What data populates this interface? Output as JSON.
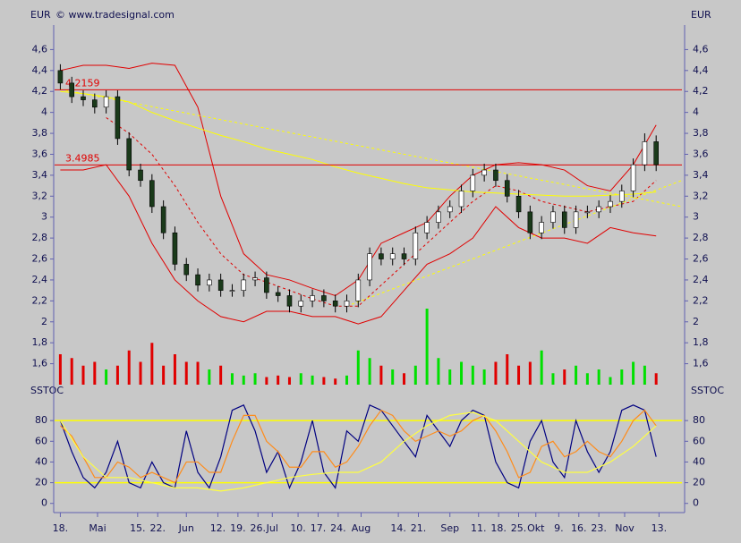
{
  "chart_data": [
    {
      "type": "candlestick",
      "y_label": "EUR",
      "copyright": "© www.tradesignal.com",
      "x": [
        0,
        4,
        8,
        12,
        16,
        20,
        24,
        28,
        32,
        36,
        40,
        44,
        48,
        52,
        56,
        60,
        64,
        68,
        72,
        76,
        80,
        84,
        88,
        92,
        96,
        100,
        104,
        108,
        112,
        116,
        120,
        124,
        128,
        132,
        136,
        140,
        144,
        148,
        152,
        156,
        160,
        164,
        168,
        172,
        176,
        180,
        184,
        188,
        192,
        196,
        200,
        204,
        208
      ],
      "open": [
        4.4,
        4.28,
        4.15,
        4.12,
        4.05,
        4.15,
        3.75,
        3.45,
        3.35,
        3.1,
        2.85,
        2.55,
        2.45,
        2.35,
        2.4,
        2.3,
        2.3,
        2.4,
        2.42,
        2.28,
        2.25,
        2.15,
        2.2,
        2.25,
        2.2,
        2.15,
        2.2,
        2.4,
        2.65,
        2.6,
        2.65,
        2.6,
        2.85,
        2.95,
        3.05,
        3.1,
        3.25,
        3.4,
        3.45,
        3.35,
        3.2,
        3.05,
        2.85,
        2.95,
        3.05,
        2.9,
        3.05,
        3.05,
        3.1,
        3.15,
        3.25,
        3.5,
        3.72
      ],
      "high": [
        4.46,
        4.34,
        4.21,
        4.18,
        4.21,
        4.21,
        3.81,
        3.51,
        3.41,
        3.16,
        2.91,
        2.61,
        2.51,
        2.46,
        2.46,
        2.36,
        2.46,
        2.48,
        2.48,
        2.34,
        2.31,
        2.26,
        2.31,
        2.31,
        2.26,
        2.26,
        2.46,
        2.71,
        2.71,
        2.71,
        2.71,
        2.91,
        3.01,
        3.11,
        3.16,
        3.31,
        3.46,
        3.51,
        3.51,
        3.41,
        3.26,
        3.11,
        3.01,
        3.11,
        3.11,
        3.11,
        3.11,
        3.16,
        3.21,
        3.31,
        3.56,
        3.8,
        3.78
      ],
      "low": [
        4.22,
        4.09,
        4.06,
        3.99,
        3.99,
        3.69,
        3.39,
        3.29,
        3.04,
        2.79,
        2.49,
        2.39,
        2.29,
        2.29,
        2.24,
        2.24,
        2.24,
        2.34,
        2.22,
        2.19,
        2.09,
        2.09,
        2.14,
        2.14,
        2.09,
        2.09,
        2.14,
        2.34,
        2.54,
        2.54,
        2.54,
        2.54,
        2.79,
        2.89,
        2.99,
        3.04,
        3.19,
        3.34,
        3.29,
        3.14,
        2.99,
        2.79,
        2.79,
        2.89,
        2.84,
        2.84,
        2.99,
        2.99,
        3.04,
        3.09,
        3.19,
        3.44,
        3.44
      ],
      "close": [
        4.28,
        4.15,
        4.12,
        4.05,
        4.15,
        3.75,
        3.45,
        3.35,
        3.1,
        2.85,
        2.55,
        2.45,
        2.35,
        2.4,
        2.3,
        2.3,
        2.4,
        2.42,
        2.28,
        2.25,
        2.15,
        2.2,
        2.25,
        2.2,
        2.15,
        2.2,
        2.4,
        2.65,
        2.6,
        2.65,
        2.6,
        2.85,
        2.95,
        3.05,
        3.1,
        3.25,
        3.4,
        3.45,
        3.35,
        3.2,
        3.05,
        2.85,
        2.95,
        3.05,
        2.9,
        3.05,
        3.05,
        3.1,
        3.15,
        3.25,
        3.5,
        3.72,
        3.5
      ],
      "color_up": "#ffffff",
      "color_down": "#1a3a1a",
      "overlays": [
        {
          "color": "#e00000",
          "dash": false,
          "x": [
            0,
            8,
            16,
            24,
            32,
            40,
            48,
            56,
            64,
            72,
            80,
            88,
            96,
            104,
            112,
            120,
            128,
            136,
            144,
            152,
            160,
            168,
            176,
            184,
            192,
            200,
            208
          ],
          "values": [
            4.4,
            4.45,
            4.45,
            4.42,
            4.47,
            4.45,
            4.05,
            3.2,
            2.65,
            2.45,
            2.4,
            2.32,
            2.25,
            2.4,
            2.75,
            2.85,
            2.95,
            3.2,
            3.4,
            3.5,
            3.52,
            3.5,
            3.45,
            3.3,
            3.25,
            3.5,
            3.88
          ]
        },
        {
          "color": "#e00000",
          "dash": false,
          "x": [
            0,
            8,
            16,
            24,
            32,
            40,
            48,
            56,
            64,
            72,
            80,
            88,
            96,
            104,
            112,
            120,
            128,
            136,
            144,
            152,
            160,
            168,
            176,
            184,
            192,
            200,
            208
          ],
          "values": [
            3.45,
            3.45,
            3.5,
            3.2,
            2.75,
            2.4,
            2.2,
            2.05,
            2.0,
            2.1,
            2.1,
            2.05,
            2.05,
            1.98,
            2.05,
            2.3,
            2.55,
            2.65,
            2.8,
            3.1,
            2.9,
            2.8,
            2.8,
            2.75,
            2.9,
            2.85,
            2.82
          ]
        },
        {
          "color": "#e00000",
          "dash": true,
          "x": [
            0,
            8,
            16,
            24,
            32,
            40,
            48,
            56,
            64,
            72,
            80,
            88,
            96,
            104,
            112,
            120,
            128,
            136,
            144,
            152,
            160,
            168,
            176,
            184,
            192,
            200,
            208
          ],
          "values": [
            null,
            null,
            3.95,
            3.8,
            3.6,
            3.3,
            2.95,
            2.65,
            2.45,
            2.38,
            2.3,
            2.22,
            2.15,
            2.15,
            2.35,
            2.55,
            2.75,
            2.95,
            3.15,
            3.3,
            3.25,
            3.15,
            3.1,
            3.05,
            3.1,
            3.15,
            3.35
          ]
        },
        {
          "color": "#ffff00",
          "dash": false,
          "x": [
            0,
            8,
            16,
            24,
            32,
            40,
            48,
            56,
            64,
            72,
            80,
            88,
            96,
            104,
            112,
            120,
            128,
            136,
            144,
            152,
            160,
            168,
            176,
            184,
            192,
            200,
            208
          ],
          "values": [
            4.2,
            4.18,
            4.15,
            4.1,
            4.0,
            3.92,
            3.85,
            3.78,
            3.72,
            3.65,
            3.6,
            3.55,
            3.48,
            3.42,
            3.37,
            3.32,
            3.28,
            3.26,
            3.24,
            3.23,
            3.22,
            3.21,
            3.2,
            3.2,
            3.21,
            3.22,
            3.24
          ]
        },
        {
          "color": "#ffff00",
          "dash": true,
          "x": [
            0,
            217
          ],
          "values": [
            4.22,
            3.1
          ]
        },
        {
          "color": "#ffff00",
          "dash": true,
          "x": [
            100,
            217
          ],
          "values": [
            2.15,
            3.35
          ]
        }
      ],
      "levels": [
        {
          "value": 4.2159,
          "color": "#e00000"
        },
        {
          "value": 3.4985,
          "color": "#e00000"
        }
      ],
      "volume": {
        "values": [
          40,
          35,
          25,
          30,
          20,
          25,
          45,
          30,
          55,
          25,
          40,
          30,
          30,
          20,
          25,
          15,
          12,
          15,
          10,
          12,
          10,
          15,
          12,
          10,
          8,
          12,
          45,
          35,
          25,
          20,
          15,
          25,
          100,
          35,
          20,
          30,
          25,
          20,
          30,
          40,
          25,
          30,
          45,
          15,
          20,
          25,
          15,
          20,
          10,
          20,
          30,
          25,
          15
        ],
        "lim": [
          0,
          100
        ],
        "color_up": "#00e000",
        "color_down": "#e00000"
      },
      "xlim": [
        -2,
        217
      ],
      "ylim": [
        1.4,
        4.8
      ],
      "yticks": [
        {
          "value": 1.6,
          "label": "1,6"
        },
        {
          "value": 1.8,
          "label": "1,8"
        },
        2,
        {
          "value": 2.2,
          "label": "2,2"
        },
        {
          "value": 2.4,
          "label": "2,4"
        },
        {
          "value": 2.6,
          "label": "2,6"
        },
        {
          "value": 2.8,
          "label": "2,8"
        },
        3,
        {
          "value": 3.2,
          "label": "3,2"
        },
        {
          "value": 3.4,
          "label": "3,4"
        },
        {
          "value": 3.6,
          "label": "3,6"
        },
        {
          "value": 3.8,
          "label": "3,8"
        },
        4,
        {
          "value": 4.2,
          "label": "4,2"
        },
        {
          "value": 4.4,
          "label": "4,4"
        },
        {
          "value": 4.6,
          "label": "4,6"
        }
      ],
      "xticks": [
        {
          "value": 0,
          "label": "18."
        },
        {
          "value": 13,
          "label": "Mai"
        },
        {
          "value": 27,
          "label": "15."
        },
        {
          "value": 34,
          "label": "22."
        },
        {
          "value": 44,
          "label": "Jun"
        },
        {
          "value": 55,
          "label": "12."
        },
        {
          "value": 62,
          "label": "19."
        },
        {
          "value": 69,
          "label": "26."
        },
        {
          "value": 74,
          "label": "Jul"
        },
        {
          "value": 83,
          "label": "10."
        },
        {
          "value": 90,
          "label": "17."
        },
        {
          "value": 97,
          "label": "24."
        },
        {
          "value": 105,
          "label": "Aug"
        },
        {
          "value": 118,
          "label": "14."
        },
        {
          "value": 125,
          "label": "21."
        },
        {
          "value": 136,
          "label": "Sep"
        },
        {
          "value": 146,
          "label": "11."
        },
        {
          "value": 153,
          "label": "18."
        },
        {
          "value": 160,
          "label": "25."
        },
        {
          "value": 166,
          "label": "Okt"
        },
        {
          "value": 174,
          "label": "9."
        },
        {
          "value": 181,
          "label": "16."
        },
        {
          "value": 188,
          "label": "23."
        },
        {
          "value": 197,
          "label": "Nov"
        },
        {
          "value": 209,
          "label": "13."
        }
      ]
    },
    {
      "type": "line",
      "y_label": "SSTOC",
      "xlim": [
        -2,
        217
      ],
      "ylim": [
        -8,
        100
      ],
      "yticks": [
        0,
        20,
        40,
        60,
        80
      ],
      "hlines": [
        80,
        20
      ],
      "hline_color": "#ffff00",
      "series": [
        {
          "color": "#000080",
          "x": [
            0,
            4,
            8,
            12,
            16,
            20,
            24,
            28,
            32,
            36,
            40,
            44,
            48,
            52,
            56,
            60,
            64,
            68,
            72,
            76,
            80,
            84,
            88,
            92,
            96,
            100,
            104,
            108,
            112,
            116,
            120,
            124,
            128,
            132,
            136,
            140,
            144,
            148,
            152,
            156,
            160,
            164,
            168,
            172,
            176,
            180,
            184,
            188,
            192,
            196,
            200,
            204,
            208
          ],
          "values": [
            80,
            50,
            25,
            15,
            30,
            60,
            20,
            15,
            40,
            20,
            15,
            70,
            30,
            15,
            45,
            90,
            95,
            70,
            30,
            50,
            15,
            40,
            80,
            30,
            15,
            70,
            60,
            95,
            90,
            75,
            60,
            45,
            85,
            70,
            55,
            80,
            90,
            85,
            40,
            20,
            15,
            60,
            80,
            40,
            25,
            80,
            50,
            30,
            50,
            90,
            95,
            90,
            45
          ]
        },
        {
          "color": "#ff8c1a",
          "x": [
            0,
            4,
            8,
            12,
            16,
            20,
            24,
            28,
            32,
            36,
            40,
            44,
            48,
            52,
            56,
            60,
            64,
            68,
            72,
            76,
            80,
            84,
            88,
            92,
            96,
            100,
            104,
            108,
            112,
            116,
            120,
            124,
            128,
            132,
            136,
            140,
            144,
            148,
            152,
            156,
            160,
            164,
            168,
            172,
            176,
            180,
            184,
            188,
            192,
            196,
            200,
            204,
            208
          ],
          "values": [
            75,
            65,
            45,
            25,
            25,
            40,
            35,
            25,
            30,
            25,
            20,
            40,
            40,
            30,
            30,
            60,
            85,
            85,
            60,
            50,
            35,
            35,
            50,
            50,
            35,
            40,
            55,
            75,
            90,
            85,
            70,
            60,
            65,
            70,
            65,
            70,
            80,
            85,
            70,
            50,
            25,
            30,
            55,
            60,
            45,
            50,
            60,
            50,
            45,
            60,
            80,
            90,
            75
          ]
        },
        {
          "color": "#ffff40",
          "x": [
            0,
            8,
            16,
            24,
            32,
            40,
            48,
            56,
            64,
            72,
            80,
            88,
            96,
            104,
            112,
            120,
            128,
            136,
            144,
            152,
            160,
            168,
            176,
            184,
            192,
            200,
            208
          ],
          "values": [
            80,
            45,
            25,
            25,
            20,
            15,
            15,
            12,
            15,
            20,
            25,
            28,
            30,
            30,
            40,
            60,
            75,
            85,
            88,
            80,
            60,
            40,
            30,
            30,
            40,
            55,
            75
          ]
        }
      ]
    }
  ]
}
